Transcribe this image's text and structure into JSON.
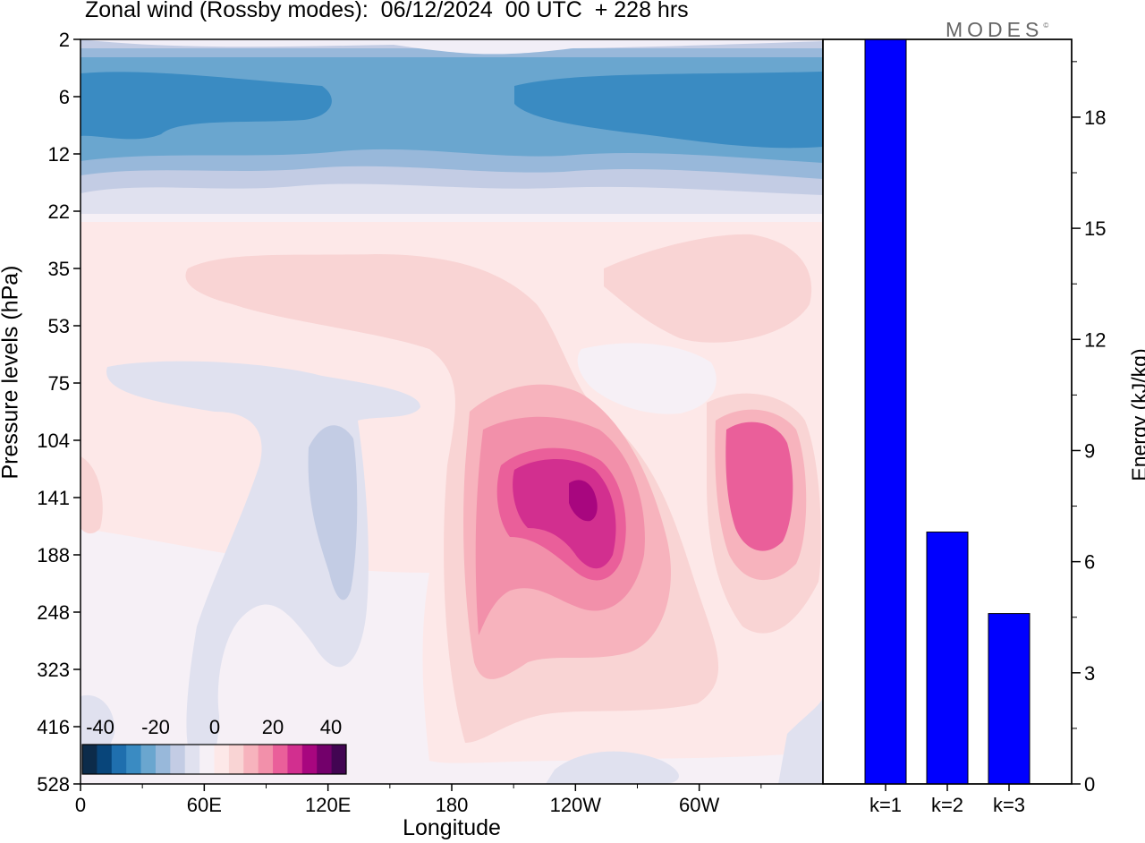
{
  "title": "Zonal wind (Rossby modes):  06/12/2024  00 UTC  + 228 hrs",
  "logo_text": "MODES",
  "logo_mark": "©",
  "colorbar": {
    "ticks": [
      "-40",
      "-20",
      "0",
      "20",
      "40"
    ],
    "colors": [
      "#0c2b4a",
      "#08457a",
      "#1f6fae",
      "#3a8bc2",
      "#6aa6cf",
      "#98b8da",
      "#c3cce4",
      "#e0e1ef",
      "#f6f0f6",
      "#fde8e8",
      "#f9d4d4",
      "#f7b3bd",
      "#f290aa",
      "#ea5f9a",
      "#d22f8f",
      "#a8067f",
      "#73006b",
      "#420552"
    ]
  },
  "chart_data": [
    {
      "type": "heatmap",
      "title": "Zonal wind (Rossby modes):  06/12/2024  00 UTC  + 228 hrs",
      "xlabel": "Longitude",
      "ylabel": "Pressure levels (hPa)",
      "x_ticks": [
        "0",
        "60E",
        "120E",
        "180",
        "120W",
        "60W"
      ],
      "y_ticks": [
        "2",
        "6",
        "12",
        "22",
        "35",
        "53",
        "75",
        "104",
        "141",
        "188",
        "248",
        "323",
        "416",
        "528"
      ],
      "colorbar_range": [
        -40,
        40
      ],
      "features": [
        {
          "sign": "negative",
          "level_range_hPa": [
            2,
            22
          ],
          "min_value": -30
        },
        {
          "sign": "positive",
          "center": "120W",
          "level_hPa": 141,
          "max_value": 36
        },
        {
          "sign": "positive",
          "center": "30W",
          "level_hPa": 141,
          "max_value": 20
        }
      ]
    },
    {
      "type": "bar",
      "categories": [
        "k=1",
        "k=2",
        "k=3"
      ],
      "values": [
        20.1,
        6.8,
        4.6
      ],
      "ylabel": "Energy (kJ/kg)",
      "y_ticks": [
        "0",
        "3",
        "6",
        "9",
        "12",
        "15",
        "18"
      ],
      "ylim": [
        0,
        20.1
      ],
      "bar_color": "#0000ff"
    }
  ]
}
